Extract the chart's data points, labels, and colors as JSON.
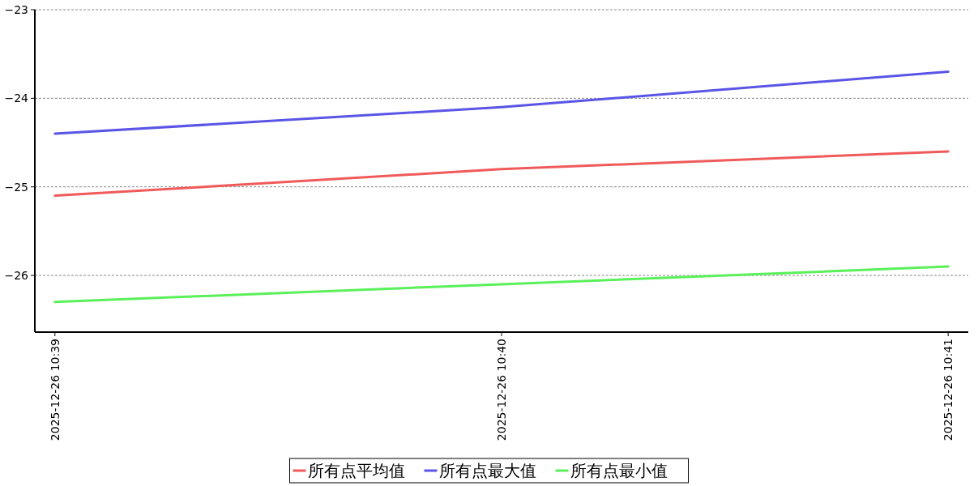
{
  "chart_data": {
    "type": "line",
    "categories": [
      "2025-12-26 10:39",
      "2025-12-26 10:40",
      "2025-12-26 10:41"
    ],
    "series": [
      {
        "name": "所有点平均值",
        "color": "#f05a5a",
        "values": [
          -25.1,
          -24.8,
          -24.6
        ]
      },
      {
        "name": "所有点最大值",
        "color": "#5a55e6",
        "values": [
          -24.4,
          -24.1,
          -23.7
        ]
      },
      {
        "name": "所有点最小值",
        "color": "#5af05a",
        "values": [
          -26.3,
          -26.1,
          -25.9
        ]
      }
    ],
    "ylim": [
      -26.64,
      -23
    ],
    "yticks": [
      -26,
      -25,
      -24,
      -23
    ],
    "grid": "y",
    "legend": "bottom",
    "marker": "none",
    "line_style": "solid"
  }
}
